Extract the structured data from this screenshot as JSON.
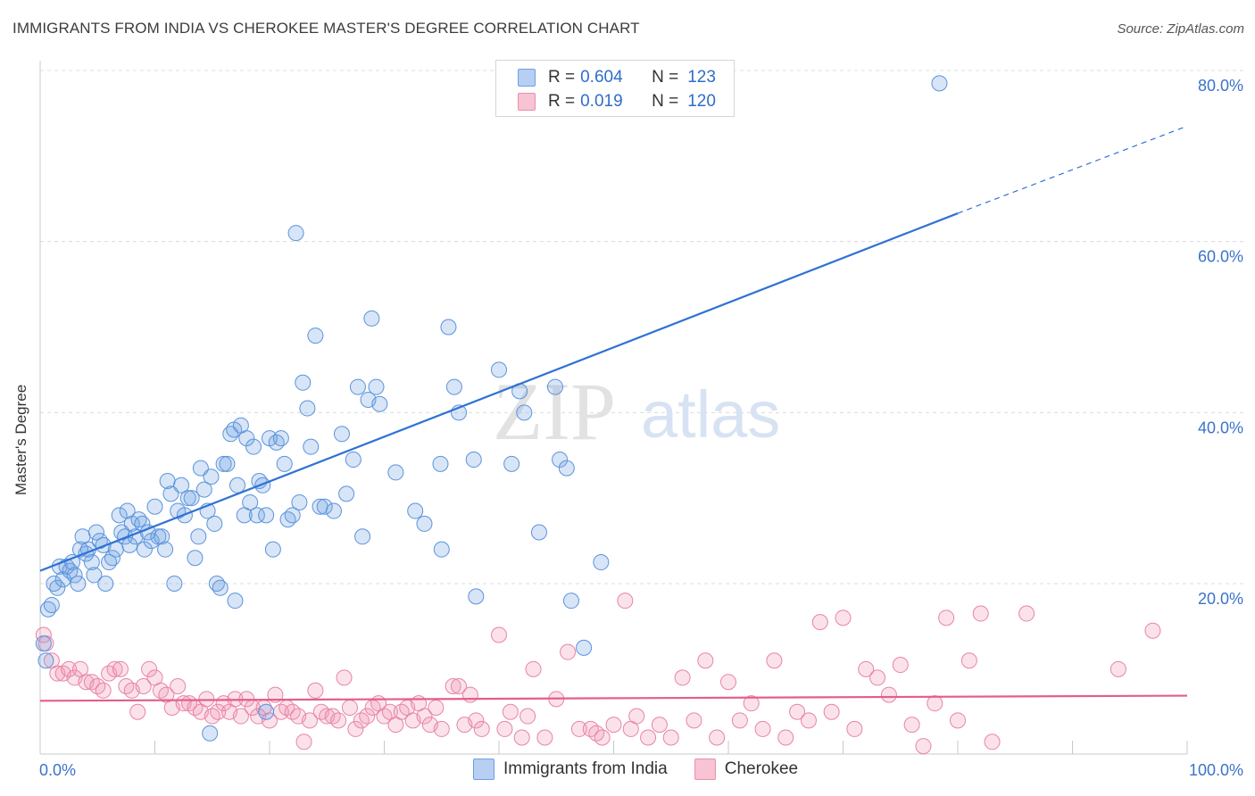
{
  "title": "IMMIGRANTS FROM INDIA VS CHEROKEE MASTER'S DEGREE CORRELATION CHART",
  "source": "Source: ZipAtlas.com",
  "watermark": {
    "zip": "ZIP",
    "atlas": "atlas"
  },
  "legend": {
    "r_label": "R =",
    "n_label": "N =",
    "rows": [
      {
        "r": "0.604",
        "n": "123"
      },
      {
        "r": "0.019",
        "n": "120"
      }
    ]
  },
  "colors": {
    "blue": "#5b93dc",
    "blue_line": "#2f72d4",
    "pink": "#e884a6",
    "pink_line": "#e45d8c",
    "axis_text": "#3b73c9"
  },
  "chart_data": {
    "type": "scatter",
    "title": "IMMIGRANTS FROM INDIA VS CHEROKEE MASTER'S DEGREE CORRELATION CHART",
    "xlabel": "",
    "ylabel": "Master's Degree",
    "xlim": [
      0,
      100
    ],
    "ylim": [
      0,
      85
    ],
    "x_ticks": [
      "0.0%",
      "100.0%"
    ],
    "y_ticks": [
      {
        "value": 20,
        "label": "20.0%"
      },
      {
        "value": 40,
        "label": "40.0%"
      },
      {
        "value": 60,
        "label": "60.0%"
      },
      {
        "value": 80,
        "label": "80.0%"
      }
    ],
    "series": [
      {
        "name": "Immigrants from India",
        "color": "#5b93dc",
        "trend": {
          "x0": 0,
          "y0": 21.5,
          "x1": 80,
          "y1": 63.3,
          "dash_to": 100,
          "dash_y": 73.5
        },
        "points": [
          [
            0.3,
            13
          ],
          [
            0.5,
            11
          ],
          [
            0.7,
            17
          ],
          [
            1,
            17.5
          ],
          [
            1.2,
            20
          ],
          [
            1.5,
            19.5
          ],
          [
            1.7,
            22
          ],
          [
            2,
            20.5
          ],
          [
            2.3,
            22
          ],
          [
            2.6,
            21.5
          ],
          [
            2.8,
            22.5
          ],
          [
            3,
            21
          ],
          [
            3.3,
            20
          ],
          [
            3.5,
            24
          ],
          [
            3.7,
            25.5
          ],
          [
            4,
            23.5
          ],
          [
            4.2,
            24
          ],
          [
            4.5,
            22.5
          ],
          [
            4.7,
            21
          ],
          [
            4.9,
            26
          ],
          [
            5.2,
            25
          ],
          [
            5.5,
            24.5
          ],
          [
            5.7,
            20
          ],
          [
            6,
            22.5
          ],
          [
            6.3,
            23
          ],
          [
            6.6,
            24
          ],
          [
            6.9,
            28
          ],
          [
            7.1,
            26
          ],
          [
            7.4,
            25.5
          ],
          [
            7.6,
            28.5
          ],
          [
            7.8,
            24.5
          ],
          [
            8,
            27
          ],
          [
            8.3,
            25.5
          ],
          [
            8.6,
            27.5
          ],
          [
            8.9,
            27
          ],
          [
            9.1,
            24
          ],
          [
            9.4,
            26
          ],
          [
            9.7,
            25
          ],
          [
            10,
            29
          ],
          [
            10.3,
            25.5
          ],
          [
            10.6,
            25.5
          ],
          [
            10.9,
            24
          ],
          [
            11.1,
            32
          ],
          [
            11.4,
            30.5
          ],
          [
            11.7,
            20
          ],
          [
            12,
            28.5
          ],
          [
            12.3,
            31.5
          ],
          [
            12.6,
            28
          ],
          [
            12.9,
            30
          ],
          [
            13.2,
            30
          ],
          [
            13.5,
            23
          ],
          [
            13.8,
            25.5
          ],
          [
            14,
            33.5
          ],
          [
            14.3,
            31
          ],
          [
            14.6,
            28.5
          ],
          [
            14.9,
            32.5
          ],
          [
            15.2,
            27
          ],
          [
            15.4,
            20
          ],
          [
            15.7,
            19.5
          ],
          [
            16,
            34
          ],
          [
            16.3,
            34
          ],
          [
            16.6,
            37.5
          ],
          [
            16.9,
            38
          ],
          [
            17.2,
            31.5
          ],
          [
            17.5,
            38.5
          ],
          [
            17.8,
            28
          ],
          [
            18,
            37
          ],
          [
            18.3,
            29.5
          ],
          [
            18.6,
            36
          ],
          [
            18.9,
            28
          ],
          [
            19.1,
            32
          ],
          [
            19.4,
            31.5
          ],
          [
            19.7,
            28
          ],
          [
            20,
            37
          ],
          [
            20.3,
            24
          ],
          [
            20.6,
            36.5
          ],
          [
            21,
            37
          ],
          [
            21.3,
            34
          ],
          [
            21.6,
            27.5
          ],
          [
            22,
            28
          ],
          [
            22.3,
            61
          ],
          [
            22.6,
            29.5
          ],
          [
            22.9,
            43.5
          ],
          [
            23.3,
            40.5
          ],
          [
            23.6,
            36
          ],
          [
            24,
            49
          ],
          [
            24.4,
            29
          ],
          [
            24.8,
            29
          ],
          [
            25.6,
            28.5
          ],
          [
            26.3,
            37.5
          ],
          [
            26.7,
            30.5
          ],
          [
            27.3,
            34.5
          ],
          [
            27.7,
            43
          ],
          [
            28.1,
            25.5
          ],
          [
            28.6,
            41.5
          ],
          [
            28.9,
            51
          ],
          [
            29.3,
            43
          ],
          [
            29.6,
            41
          ],
          [
            31,
            33
          ],
          [
            32.7,
            28.5
          ],
          [
            33.5,
            27
          ],
          [
            34.9,
            34
          ],
          [
            35,
            24
          ],
          [
            35.6,
            50
          ],
          [
            36.1,
            43
          ],
          [
            36.5,
            40
          ],
          [
            37.8,
            34.5
          ],
          [
            38,
            18.5
          ],
          [
            40,
            45
          ],
          [
            41.1,
            34
          ],
          [
            41.8,
            42.5
          ],
          [
            42.2,
            40
          ],
          [
            43.5,
            26
          ],
          [
            44.9,
            43
          ],
          [
            45.3,
            34.5
          ],
          [
            45.9,
            33.5
          ],
          [
            46.3,
            18
          ],
          [
            47.4,
            12.5
          ],
          [
            48.9,
            22.5
          ],
          [
            78.4,
            78.5
          ],
          [
            14.8,
            2.5
          ],
          [
            19.7,
            5
          ],
          [
            17,
            18
          ]
        ]
      },
      {
        "name": "Cherokee",
        "color": "#e884a6",
        "trend": {
          "x0": 0,
          "y0": 6.3,
          "x1": 100,
          "y1": 6.9
        },
        "points": [
          [
            0.3,
            14
          ],
          [
            0.5,
            13
          ],
          [
            1,
            11
          ],
          [
            1.5,
            9.5
          ],
          [
            2,
            9.5
          ],
          [
            2.5,
            10
          ],
          [
            3,
            9
          ],
          [
            3.5,
            10
          ],
          [
            4,
            8.5
          ],
          [
            4.5,
            8.5
          ],
          [
            5,
            8
          ],
          [
            5.5,
            7.5
          ],
          [
            6,
            9.5
          ],
          [
            6.5,
            10
          ],
          [
            7,
            10
          ],
          [
            7.5,
            8
          ],
          [
            8,
            7.5
          ],
          [
            8.5,
            5
          ],
          [
            9,
            8
          ],
          [
            9.5,
            10
          ],
          [
            10,
            9
          ],
          [
            10.5,
            7.5
          ],
          [
            11,
            7
          ],
          [
            11.5,
            5.5
          ],
          [
            12,
            8
          ],
          [
            12.5,
            6
          ],
          [
            13,
            6
          ],
          [
            13.5,
            5.5
          ],
          [
            14,
            5
          ],
          [
            14.5,
            6.5
          ],
          [
            15,
            4.5
          ],
          [
            15.5,
            5
          ],
          [
            16,
            6
          ],
          [
            16.5,
            5
          ],
          [
            17,
            6.5
          ],
          [
            17.5,
            4.5
          ],
          [
            18,
            6.5
          ],
          [
            18.5,
            5.5
          ],
          [
            19,
            4.5
          ],
          [
            19.5,
            5.5
          ],
          [
            20,
            4
          ],
          [
            20.5,
            7
          ],
          [
            21,
            5
          ],
          [
            21.5,
            5.5
          ],
          [
            22,
            5
          ],
          [
            22.5,
            4.5
          ],
          [
            23,
            1.5
          ],
          [
            23.5,
            4
          ],
          [
            24,
            7.5
          ],
          [
            24.5,
            5
          ],
          [
            25,
            4.5
          ],
          [
            25.5,
            4.5
          ],
          [
            26,
            4
          ],
          [
            26.5,
            9
          ],
          [
            27,
            5.5
          ],
          [
            27.5,
            3
          ],
          [
            28,
            4
          ],
          [
            28.5,
            4.5
          ],
          [
            29,
            5.5
          ],
          [
            29.5,
            6
          ],
          [
            30,
            4.5
          ],
          [
            30.5,
            5
          ],
          [
            31,
            3.5
          ],
          [
            31.5,
            5
          ],
          [
            32,
            5.5
          ],
          [
            32.5,
            4
          ],
          [
            33,
            6
          ],
          [
            33.5,
            4.5
          ],
          [
            34,
            3.5
          ],
          [
            34.5,
            5.5
          ],
          [
            35,
            3
          ],
          [
            36,
            8
          ],
          [
            36.5,
            8
          ],
          [
            37,
            3.5
          ],
          [
            37.5,
            7
          ],
          [
            38,
            4
          ],
          [
            38.5,
            3
          ],
          [
            40,
            14
          ],
          [
            40.5,
            3
          ],
          [
            41,
            5
          ],
          [
            42,
            2
          ],
          [
            42.5,
            4.5
          ],
          [
            43,
            10
          ],
          [
            44,
            2
          ],
          [
            45,
            6.5
          ],
          [
            46,
            12
          ],
          [
            47,
            3
          ],
          [
            48,
            3
          ],
          [
            48.5,
            2.5
          ],
          [
            49,
            2
          ],
          [
            50,
            3.5
          ],
          [
            51,
            18
          ],
          [
            51.5,
            3
          ],
          [
            52,
            4.5
          ],
          [
            53,
            2
          ],
          [
            54,
            3.5
          ],
          [
            55,
            2
          ],
          [
            56,
            9
          ],
          [
            57,
            4
          ],
          [
            58,
            11
          ],
          [
            59,
            2
          ],
          [
            60,
            8.5
          ],
          [
            61,
            4
          ],
          [
            62,
            6
          ],
          [
            63,
            3
          ],
          [
            64,
            11
          ],
          [
            65,
            2
          ],
          [
            66,
            5
          ],
          [
            67,
            4
          ],
          [
            68,
            15.5
          ],
          [
            69,
            5
          ],
          [
            70,
            16
          ],
          [
            71,
            3
          ],
          [
            72,
            10
          ],
          [
            73,
            9
          ],
          [
            74,
            7
          ],
          [
            75,
            10.5
          ],
          [
            76,
            3.5
          ],
          [
            77,
            1
          ],
          [
            78,
            6
          ],
          [
            79,
            16
          ],
          [
            80,
            4
          ],
          [
            81,
            11
          ],
          [
            82,
            16.5
          ],
          [
            83,
            1.5
          ],
          [
            86,
            16.5
          ],
          [
            94,
            10
          ],
          [
            97,
            14.5
          ]
        ]
      }
    ]
  },
  "bottom_legend": [
    {
      "label": "Immigrants from India"
    },
    {
      "label": "Cherokee"
    }
  ]
}
